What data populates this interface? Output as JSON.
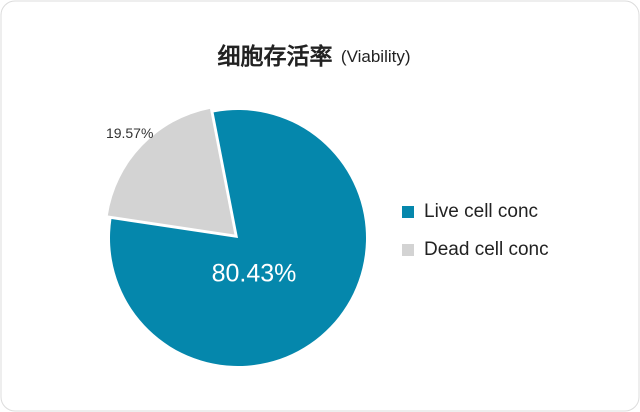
{
  "chart_data": {
    "type": "pie",
    "title": "细胞存活率",
    "subtitle": "(Viability)",
    "categories": [
      "Live cell conc",
      "Dead cell conc"
    ],
    "values": [
      80.43,
      19.57
    ],
    "value_labels": [
      "80.43%",
      "19.57%"
    ],
    "colors": [
      "#0587ac",
      "#d3d3d3"
    ],
    "legend": "right"
  }
}
